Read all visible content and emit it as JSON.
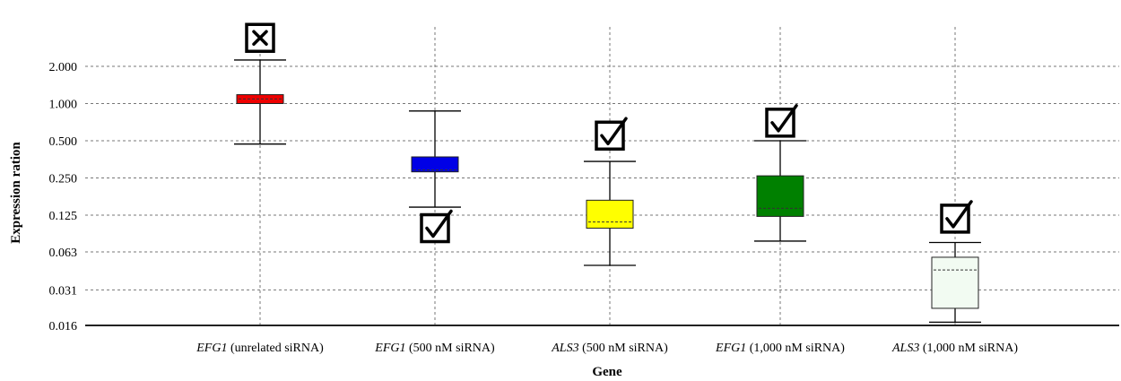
{
  "chart_data": {
    "type": "box",
    "title": "",
    "xlabel": "Gene",
    "ylabel": "Expression ration",
    "y_scale": "log2",
    "ylim": [
      0.016,
      2.9
    ],
    "y_ticks": [
      {
        "value": 2.0,
        "label": "2.000"
      },
      {
        "value": 1.0,
        "label": "1.000"
      },
      {
        "value": 0.5,
        "label": "0.500"
      },
      {
        "value": 0.25,
        "label": "0.250"
      },
      {
        "value": 0.125,
        "label": "0.125"
      },
      {
        "value": 0.063,
        "label": "0.063"
      },
      {
        "value": 0.031,
        "label": "0.031"
      },
      {
        "value": 0.016,
        "label": "0.016"
      }
    ],
    "grid": true,
    "categories": [
      {
        "gene": "EFG1",
        "condition": "(unrelated siRNA)"
      },
      {
        "gene": "EFG1",
        "condition": "(500 nM siRNA)"
      },
      {
        "gene": "ALS3",
        "condition": "(500 nM siRNA)"
      },
      {
        "gene": "EFG1",
        "condition": "(1,000 nM siRNA)"
      },
      {
        "gene": "ALS3",
        "condition": "(1,000 nM siRNA)"
      }
    ],
    "boxes": [
      {
        "whisker_low": 0.47,
        "q1": 1.0,
        "median": 1.09,
        "q3": 1.18,
        "whisker_high": 2.25,
        "color": "#ee0000",
        "mark": "cross",
        "mark_y": 3.4
      },
      {
        "whisker_low": 0.145,
        "q1": 0.28,
        "median": 0.29,
        "q3": 0.37,
        "whisker_high": 0.87,
        "color": "#0000e6",
        "mark": "check",
        "mark_y": 0.098
      },
      {
        "whisker_low": 0.049,
        "q1": 0.098,
        "median": 0.11,
        "q3": 0.165,
        "whisker_high": 0.34,
        "color": "#ffff00",
        "mark": "check",
        "mark_y": 0.55
      },
      {
        "whisker_low": 0.077,
        "q1": 0.122,
        "median": 0.142,
        "q3": 0.26,
        "whisker_high": 0.5,
        "color": "#008000",
        "mark": "check",
        "mark_y": 0.7
      },
      {
        "whisker_low": 0.017,
        "q1": 0.022,
        "median": 0.045,
        "q3": 0.057,
        "whisker_high": 0.075,
        "color": "#f2fbf2",
        "mark": "check",
        "mark_y": 0.117
      }
    ]
  }
}
